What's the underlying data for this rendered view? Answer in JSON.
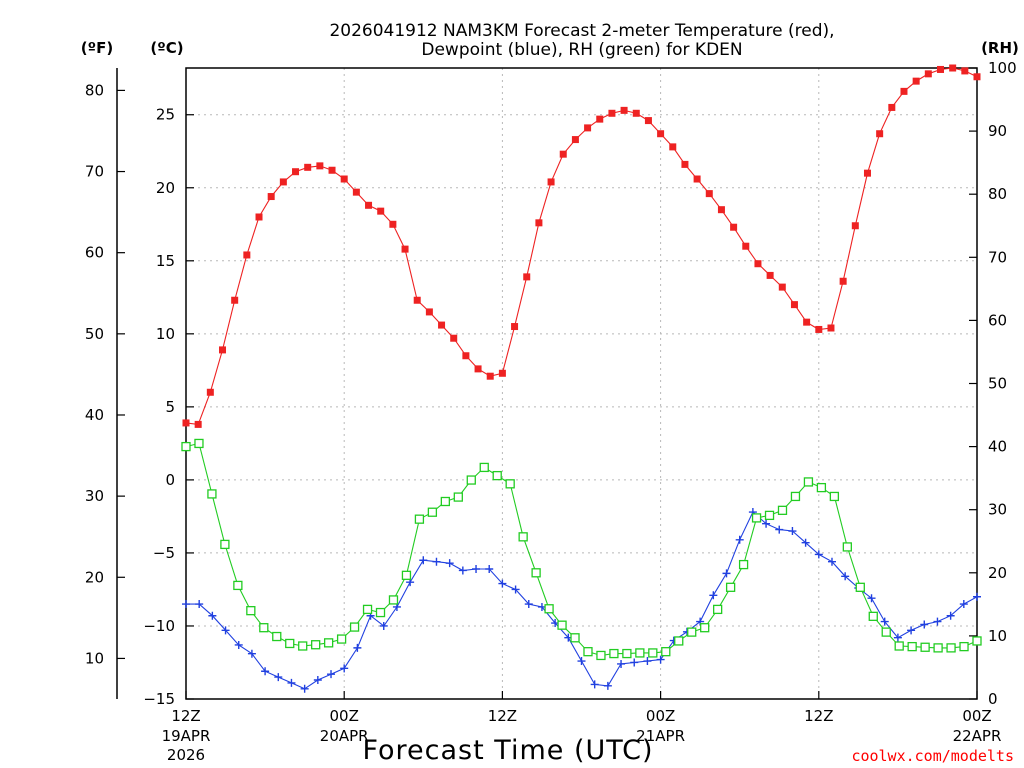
{
  "chart_data": {
    "type": "line",
    "title_line1": "2026041912 NAM3KM Forecast 2-meter Temperature (red),",
    "title_line2": "Dewpoint (blue), RH (green) for KDEN",
    "left_outer_unit": "(ºF)",
    "left_inner_unit": "(ºC)",
    "right_unit": "(RH)",
    "xlabel": "Forecast Time (UTC)",
    "credit": "coolwx.com/modelts",
    "x_hours_range": [
      0,
      60
    ],
    "celsius_range": [
      -15.0,
      28.2
    ],
    "rh_range": [
      0,
      100
    ],
    "celsius_ticks": [
      "−15",
      "−10",
      "−5",
      "0",
      "5",
      "10",
      "15",
      "20",
      "25"
    ],
    "fahrenheit_ticks": [
      "10",
      "20",
      "30",
      "40",
      "50",
      "60",
      "70",
      "80"
    ],
    "rh_ticks": [
      "0",
      "10",
      "20",
      "30",
      "40",
      "50",
      "60",
      "70",
      "80",
      "90",
      "100"
    ],
    "x_ticks": [
      {
        "hour": 0,
        "line1": "12Z",
        "line2": "19APR",
        "line3": "2026"
      },
      {
        "hour": 12,
        "line1": "00Z",
        "line2": "20APR",
        "line3": ""
      },
      {
        "hour": 24,
        "line1": "12Z",
        "line2": "",
        "line3": ""
      },
      {
        "hour": 36,
        "line1": "00Z",
        "line2": "21APR",
        "line3": ""
      },
      {
        "hour": 48,
        "line1": "12Z",
        "line2": "",
        "line3": ""
      },
      {
        "hour": 60,
        "line1": "00Z",
        "line2": "22APR",
        "line3": ""
      }
    ],
    "series": [
      {
        "name": "2-meter Temperature",
        "color": "#ee2222",
        "marker": "filled-square",
        "axis": "celsius",
        "values": [
          3.9,
          3.8,
          6.0,
          8.9,
          12.3,
          15.4,
          18.0,
          19.4,
          20.4,
          21.1,
          21.4,
          21.5,
          21.2,
          20.6,
          19.7,
          18.8,
          18.4,
          17.5,
          15.8,
          12.3,
          11.5,
          10.6,
          9.7,
          8.5,
          7.6,
          7.1,
          7.3,
          10.5,
          13.9,
          17.6,
          20.4,
          22.3,
          23.3,
          24.1,
          24.7,
          25.1,
          25.3,
          25.1,
          24.6,
          23.7,
          22.8,
          21.6,
          20.6,
          19.6,
          18.5,
          17.3,
          16.0,
          14.8,
          14.0,
          13.2,
          12.0,
          10.8,
          10.3,
          10.4,
          13.6,
          17.4,
          21.0,
          23.7,
          25.5,
          26.6,
          27.3,
          27.8,
          28.1,
          28.2,
          28.0,
          27.6
        ]
      },
      {
        "name": "Dewpoint",
        "color": "#2040e0",
        "marker": "plus",
        "axis": "celsius",
        "values": [
          -8.5,
          -8.5,
          -9.3,
          -10.3,
          -11.3,
          -11.9,
          -13.1,
          -13.5,
          -13.9,
          -14.3,
          -13.7,
          -13.3,
          -12.9,
          -11.5,
          -9.3,
          -10.0,
          -8.7,
          -7.0,
          -5.5,
          -5.6,
          -5.7,
          -6.2,
          -6.1,
          -6.1,
          -7.1,
          -7.5,
          -8.5,
          -8.7,
          -9.8,
          -10.8,
          -12.4,
          -14.0,
          -14.1,
          -12.6,
          -12.5,
          -12.4,
          -12.3,
          -11.0,
          -10.4,
          -9.7,
          -7.9,
          -6.4,
          -4.1,
          -2.2,
          -3.0,
          -3.4,
          -3.5,
          -4.3,
          -5.1,
          -5.6,
          -6.6,
          -7.4,
          -8.1,
          -9.7,
          -10.8,
          -10.3,
          -9.9,
          -9.7,
          -9.3,
          -8.5,
          -8.0
        ]
      },
      {
        "name": "RH",
        "color": "#22cc22",
        "marker": "open-square",
        "axis": "rh",
        "values": [
          40,
          40.5,
          32.5,
          24.5,
          18,
          14,
          11.3,
          9.9,
          8.8,
          8.4,
          8.6,
          8.9,
          9.5,
          11.4,
          14.2,
          13.7,
          15.7,
          19.6,
          28.5,
          29.6,
          31.3,
          32.0,
          34.7,
          36.7,
          35.4,
          34.1,
          25.7,
          20,
          14.3,
          11.7,
          9.7,
          7.5,
          6.9,
          7.2,
          7.2,
          7.3,
          7.3,
          7.5,
          9.2,
          10.6,
          11.3,
          14.2,
          17.7,
          21.3,
          28.7,
          29.1,
          29.9,
          32.1,
          34.4,
          33.5,
          32.1,
          24.1,
          17.7,
          13.1,
          10.6,
          8.4,
          8.3,
          8.2,
          8.1,
          8.1,
          8.3,
          9.2
        ]
      }
    ]
  }
}
